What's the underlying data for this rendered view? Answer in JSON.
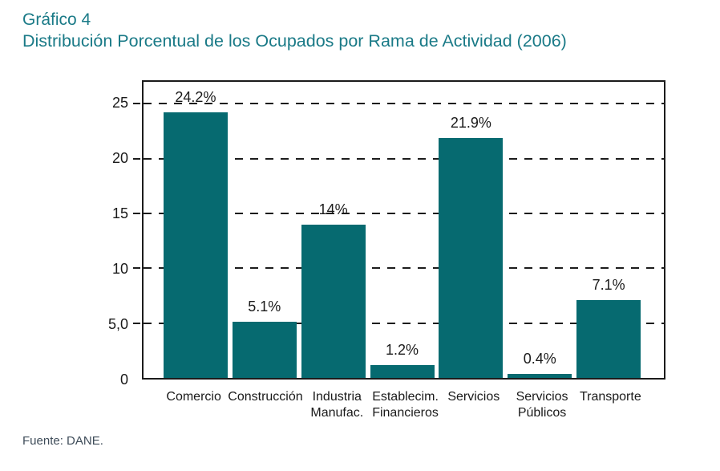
{
  "page": {
    "title_label": "Gráfico 4",
    "title": "Distribución Porcentual de los Ocupados por Rama de Actividad (2006)",
    "source": "Fuente: DANE.",
    "title_color": "#1a7a87"
  },
  "chart_data": {
    "type": "bar",
    "title": "Gráfico 4",
    "subtitle": "Distribución Porcentual de los Ocupados por Rama de Actividad (2006)",
    "categories": [
      "Comercio",
      "Construcción",
      "Industria\nManufac.",
      "Establecim.\nFinancieros",
      "Servicios",
      "Servicios\nPúblicos",
      "Transporte"
    ],
    "values": [
      24.2,
      5.1,
      14,
      1.2,
      21.9,
      0.4,
      7.1
    ],
    "bar_labels": [
      "24.2%",
      "5.1%",
      "14%",
      "1.2%",
      "21.9%",
      "0.4%",
      "7.1%"
    ],
    "y_ticks": [
      {
        "value": 25,
        "label": "25"
      },
      {
        "value": 20,
        "label": "20"
      },
      {
        "value": 15,
        "label": "15"
      },
      {
        "value": 10,
        "label": "10"
      },
      {
        "value": 5,
        "label": "5,0"
      },
      {
        "value": 0,
        "label": "0"
      }
    ],
    "gridline_values": [
      5,
      10,
      15,
      20,
      25
    ],
    "grid_style": "dashed-horizontal",
    "ylim": [
      0,
      27
    ],
    "xlabel": "",
    "ylabel": "",
    "bar_color": "#066a70",
    "axis_color": "#1b1b1b",
    "source": "Fuente: DANE."
  }
}
